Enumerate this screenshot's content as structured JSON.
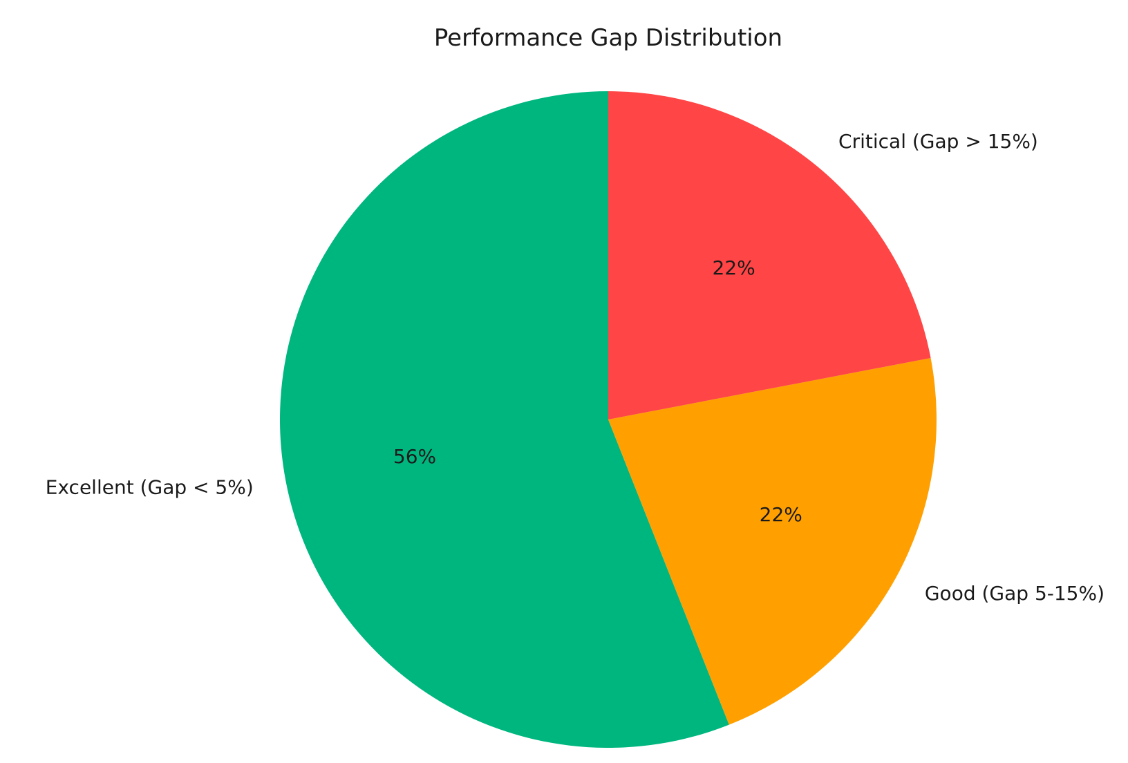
{
  "chart_data": {
    "type": "pie",
    "title": "Performance Gap Distribution",
    "slices": [
      {
        "label": "Excellent (Gap < 5%)",
        "value": 56,
        "pct_label": "56%",
        "color": "#00b67f"
      },
      {
        "label": "Good (Gap 5-15%)",
        "value": 22,
        "pct_label": "22%",
        "color": "#ffa000"
      },
      {
        "label": "Critical (Gap > 15%)",
        "value": 22,
        "pct_label": "22%",
        "color": "#ff4545"
      }
    ],
    "start_angle_deg": 90,
    "direction": "counterclockwise"
  }
}
